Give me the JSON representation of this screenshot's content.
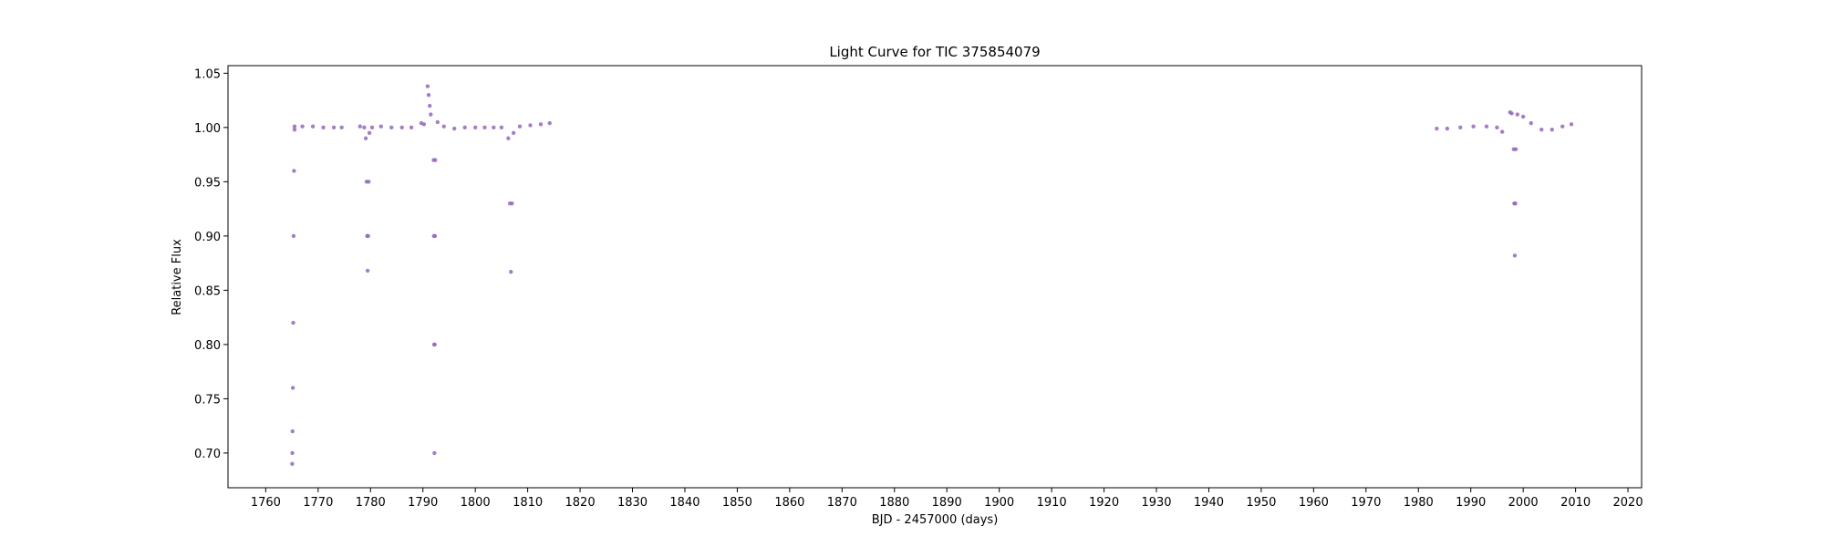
{
  "chart_data": {
    "type": "scatter",
    "title": "Light Curve for TIC 375854079",
    "xlabel": "BJD - 2457000 (days)",
    "ylabel": "Relative Flux",
    "xlim": [
      1752.8,
      2022.6
    ],
    "ylim": [
      0.668,
      1.057
    ],
    "x_ticks": [
      1760,
      1770,
      1780,
      1790,
      1800,
      1810,
      1820,
      1830,
      1840,
      1850,
      1860,
      1870,
      1880,
      1890,
      1900,
      1910,
      1920,
      1930,
      1940,
      1950,
      1960,
      1970,
      1980,
      1990,
      2000,
      2010,
      2020
    ],
    "y_ticks": [
      0.7,
      0.75,
      0.8,
      0.85,
      0.9,
      0.95,
      1.0,
      1.05
    ],
    "grid": false,
    "marker_color": "#9467bd",
    "series": [
      {
        "points": [
          [
            1765.05,
            0.69
          ],
          [
            1765.08,
            0.7
          ],
          [
            1765.12,
            0.72
          ],
          [
            1765.18,
            0.76
          ],
          [
            1765.25,
            0.82
          ],
          [
            1765.32,
            0.9
          ],
          [
            1765.4,
            0.96
          ],
          [
            1765.5,
            0.998
          ],
          [
            1765.5,
            1.001
          ],
          [
            1767.0,
            1.001
          ],
          [
            1769.0,
            1.001
          ],
          [
            1771.0,
            1.0
          ],
          [
            1773.0,
            1.0
          ],
          [
            1774.5,
            1.0
          ],
          [
            1778.0,
            1.001
          ],
          [
            1778.8,
            1.0
          ],
          [
            1779.1,
            0.99
          ],
          [
            1779.25,
            0.95
          ],
          [
            1779.35,
            0.9
          ],
          [
            1779.45,
            0.868
          ],
          [
            1779.55,
            0.9
          ],
          [
            1779.65,
            0.95
          ],
          [
            1779.8,
            0.995
          ],
          [
            1780.3,
            1.0
          ],
          [
            1782.0,
            1.001
          ],
          [
            1784.0,
            1.0
          ],
          [
            1786.0,
            1.0
          ],
          [
            1787.8,
            1.0
          ],
          [
            1789.7,
            1.004
          ],
          [
            1790.2,
            1.003
          ],
          [
            1790.9,
            1.038
          ],
          [
            1791.1,
            1.03
          ],
          [
            1791.3,
            1.02
          ],
          [
            1791.5,
            1.012
          ],
          [
            1792.05,
            0.97
          ],
          [
            1792.1,
            0.9
          ],
          [
            1792.15,
            0.8
          ],
          [
            1792.2,
            0.7
          ],
          [
            1792.25,
            0.8
          ],
          [
            1792.3,
            0.9
          ],
          [
            1792.35,
            0.97
          ],
          [
            1792.8,
            1.005
          ],
          [
            1794.0,
            1.001
          ],
          [
            1796.0,
            0.999
          ],
          [
            1798.0,
            1.0
          ],
          [
            1800.0,
            1.0
          ],
          [
            1801.8,
            1.0
          ],
          [
            1803.5,
            1.0
          ],
          [
            1805.0,
            1.0
          ],
          [
            1806.3,
            0.99
          ],
          [
            1806.6,
            0.93
          ],
          [
            1806.8,
            0.867
          ],
          [
            1807.0,
            0.93
          ],
          [
            1807.3,
            0.995
          ],
          [
            1808.5,
            1.001
          ],
          [
            1810.5,
            1.002
          ],
          [
            1812.5,
            1.003
          ],
          [
            1814.2,
            1.004
          ],
          [
            1983.5,
            0.999
          ],
          [
            1985.5,
            0.999
          ],
          [
            1988.0,
            1.0
          ],
          [
            1990.5,
            1.001
          ],
          [
            1993.0,
            1.001
          ],
          [
            1995.0,
            1.0
          ],
          [
            1996.0,
            0.996
          ],
          [
            1997.5,
            1.014
          ],
          [
            1997.8,
            1.013
          ],
          [
            1998.2,
            0.98
          ],
          [
            1998.3,
            0.93
          ],
          [
            1998.4,
            0.882
          ],
          [
            1998.5,
            0.93
          ],
          [
            1998.6,
            0.98
          ],
          [
            1998.9,
            1.012
          ],
          [
            2000.0,
            1.01
          ],
          [
            2001.5,
            1.004
          ],
          [
            2003.5,
            0.998
          ],
          [
            2005.5,
            0.998
          ],
          [
            2007.5,
            1.001
          ],
          [
            2009.2,
            1.003
          ]
        ]
      }
    ]
  }
}
